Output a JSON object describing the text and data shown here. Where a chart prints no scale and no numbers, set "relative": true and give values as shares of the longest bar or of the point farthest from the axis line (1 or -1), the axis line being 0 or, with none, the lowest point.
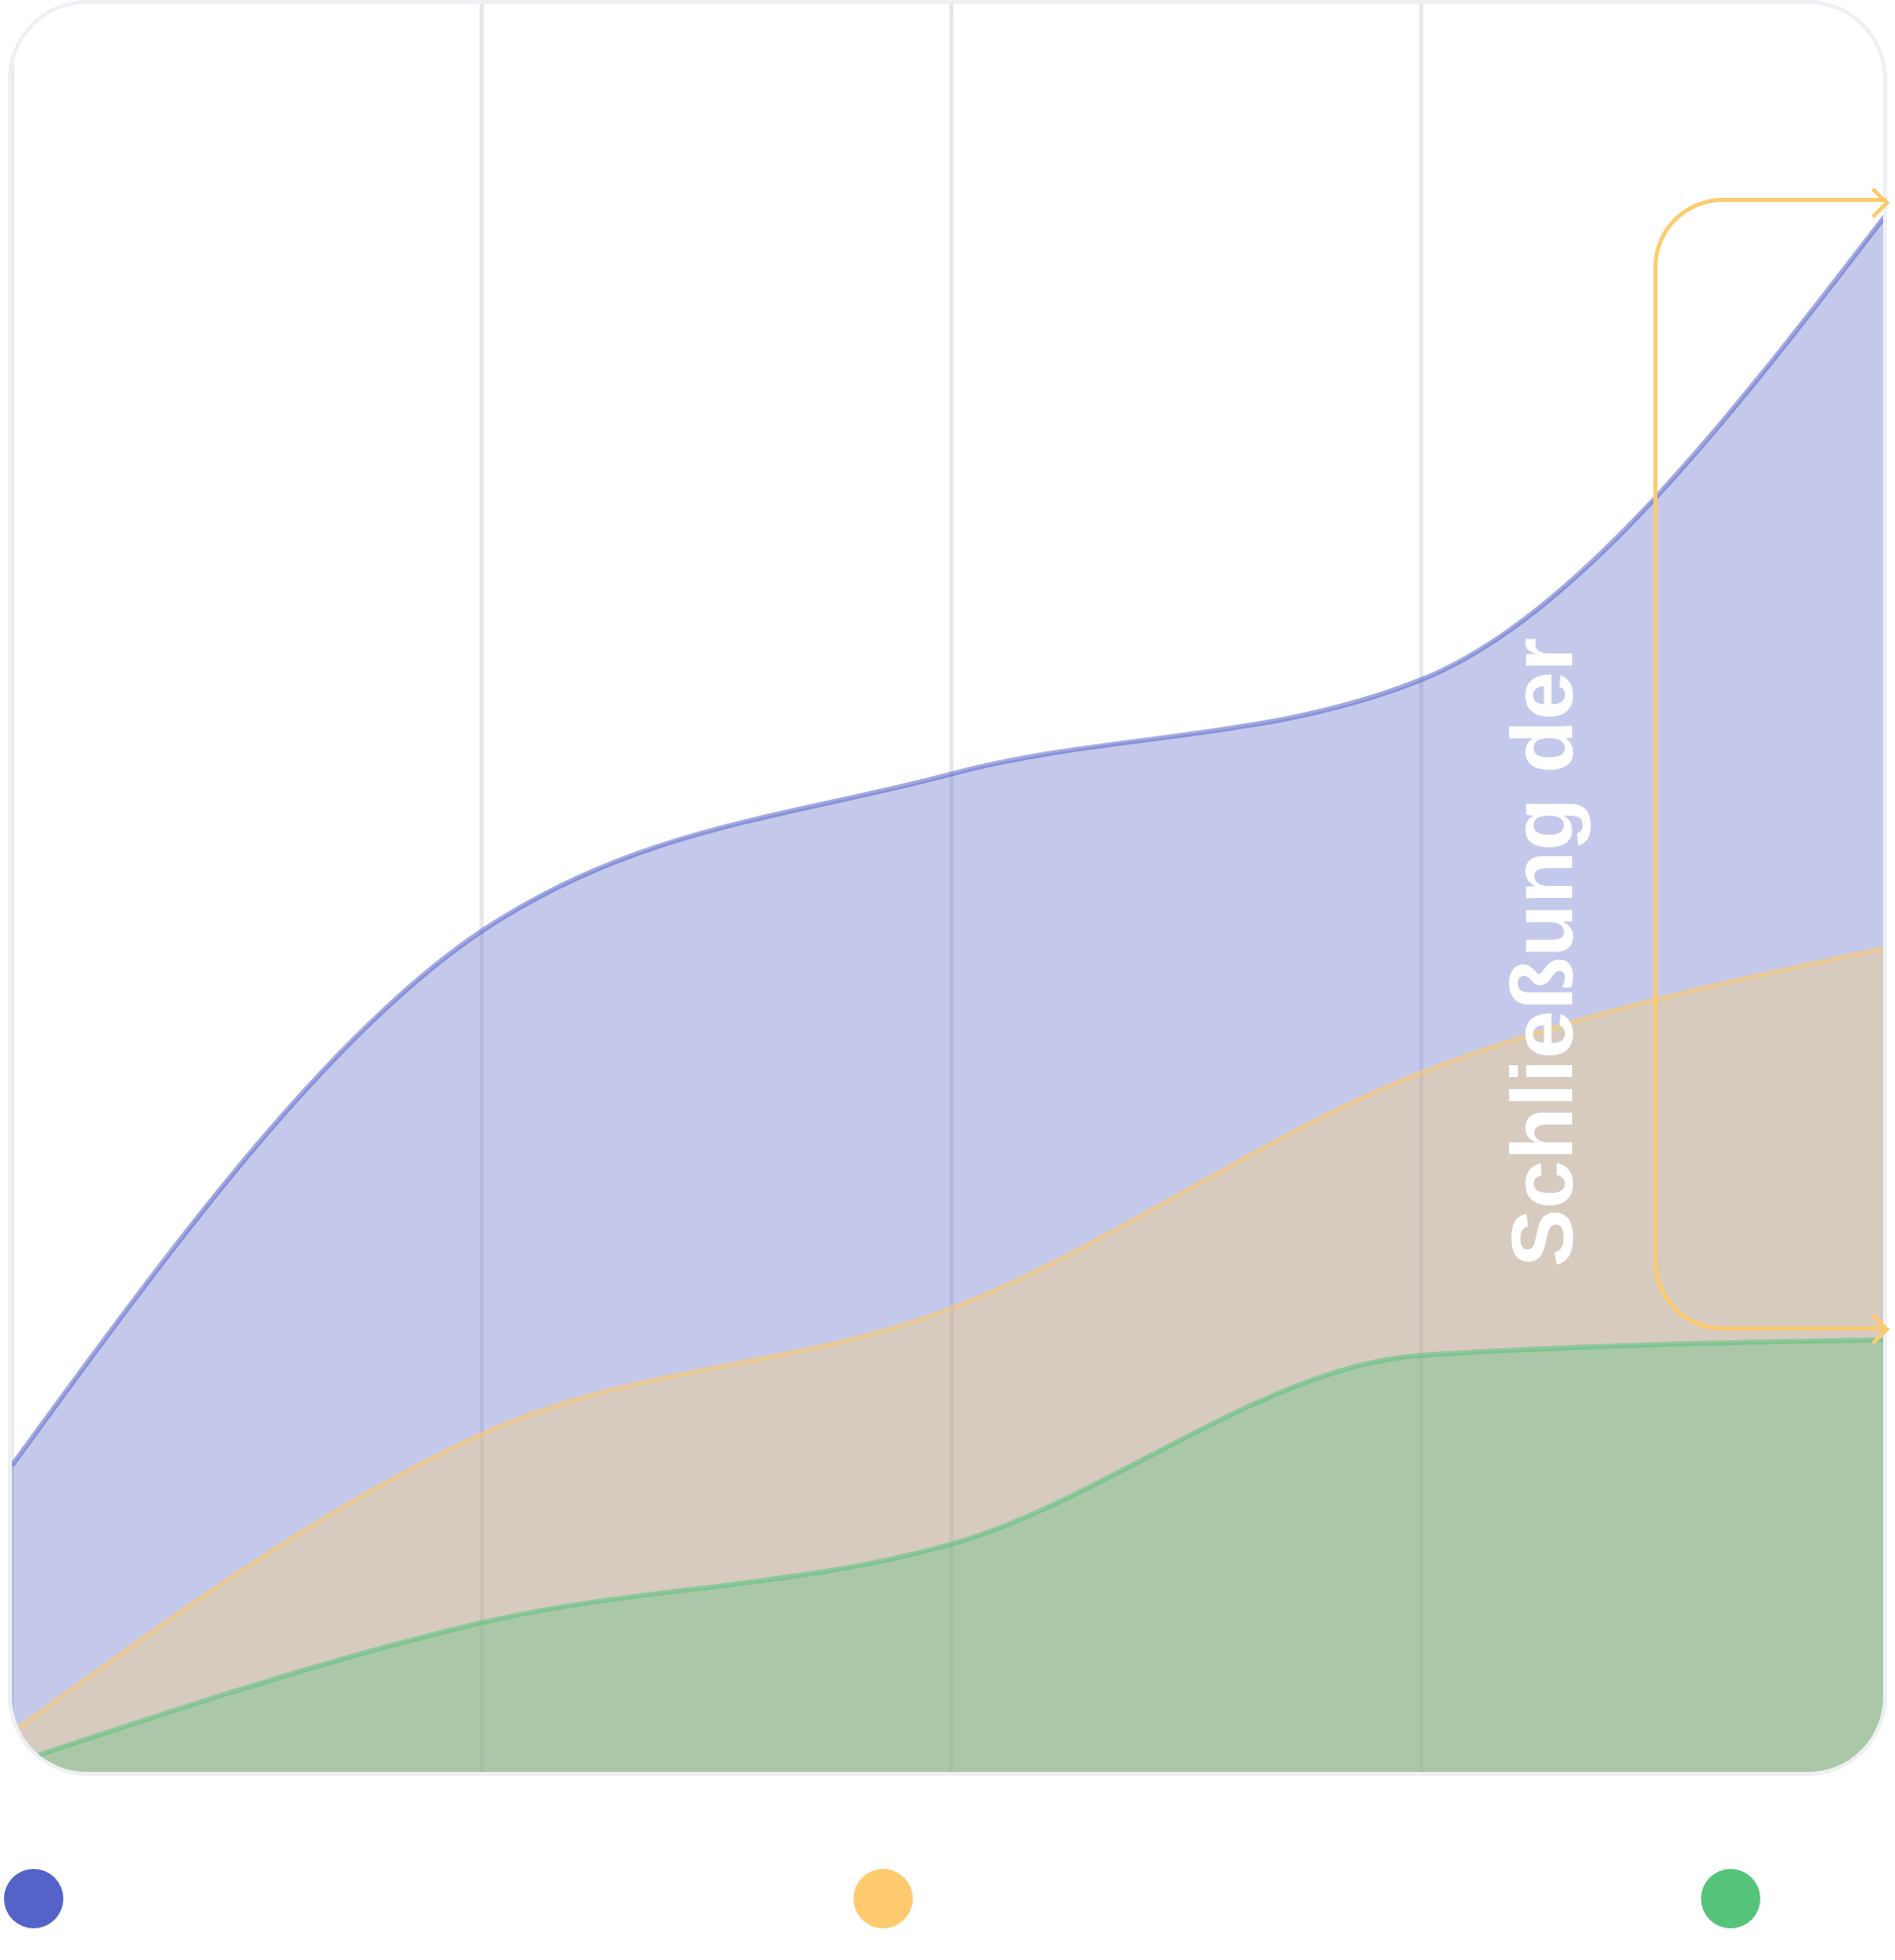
{
  "chart_data": {
    "type": "area",
    "relative": true,
    "categories": [
      null,
      null,
      null,
      null,
      null
    ],
    "series": [
      {
        "color": "#5563c9",
        "values": [
          0.2,
          0.54,
          0.64,
          0.7,
          1
        ]
      },
      {
        "color": "#fdcb6e",
        "values": [
          0.03,
          0.22,
          0.3,
          0.45,
          0.53
        ]
      },
      {
        "color": "#56c37b",
        "values": [
          0.01,
          0.1,
          0.15,
          0.27,
          0.28
        ]
      }
    ],
    "grid": "x",
    "annotations": [
      "Schließung der"
    ]
  }
}
